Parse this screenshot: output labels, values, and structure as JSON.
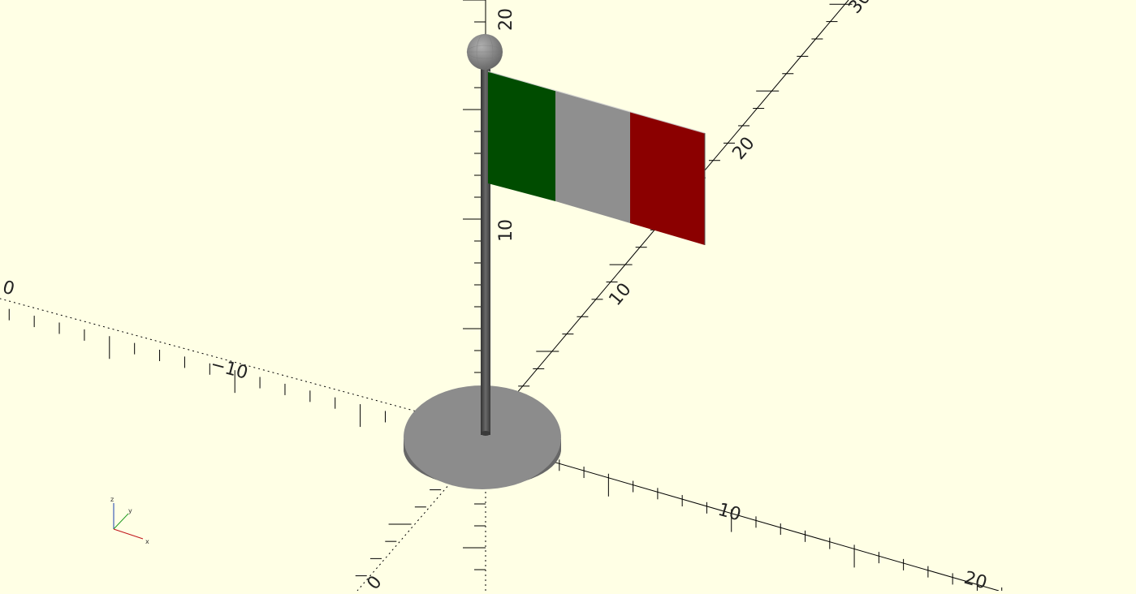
{
  "viewport": {
    "background": "#ffffe5",
    "axis_labels": {
      "x_neg_10": "−10",
      "x_zero": "0",
      "x_pos_10": "10",
      "x_pos_20": "20",
      "y_zero": "0",
      "y_pos_10": "10",
      "y_pos_20": "20",
      "y_pos_30": "30",
      "z_pos_10": "10",
      "z_pos_20": "20"
    },
    "gizmo": {
      "x": "x",
      "y": "y",
      "z": "z"
    }
  },
  "model": {
    "object": "flag-on-stand",
    "stripe_colors": {
      "left": "#004c00",
      "middle": "#8f8f8f",
      "right": "#8b0000"
    },
    "part_colors": {
      "pole": "#505050",
      "base_top": "#8c8c8c",
      "base_side": "#5a5a5a",
      "finial": "#8a8a8a"
    }
  }
}
